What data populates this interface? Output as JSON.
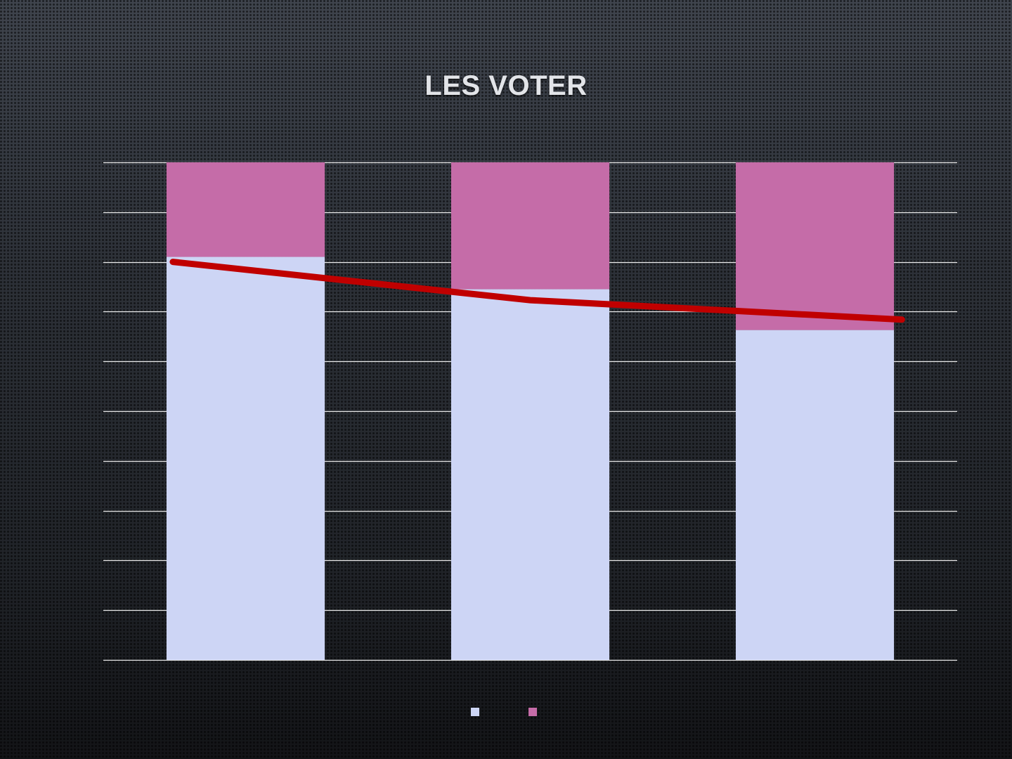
{
  "slide": {
    "title": "LES VOTER"
  },
  "chart_data": {
    "type": "bar",
    "stacked": true,
    "categories": [
      "",
      "",
      ""
    ],
    "series": [
      {
        "values": [
          81,
          74.5,
          66.3
        ],
        "color": "#cdd5f5"
      },
      {
        "values": [
          19,
          25.5,
          33.7
        ],
        "color": "#c56ca8"
      }
    ],
    "trendline": {
      "values": [
        80,
        72.3,
        68.4
      ],
      "color": "#c00000"
    },
    "ylim": [
      0,
      100
    ],
    "gridlines": [
      0,
      10,
      20,
      30,
      40,
      50,
      60,
      70,
      80,
      90,
      100
    ],
    "grid": true,
    "legend": "bottom-center",
    "xlabel": "",
    "ylabel": ""
  }
}
